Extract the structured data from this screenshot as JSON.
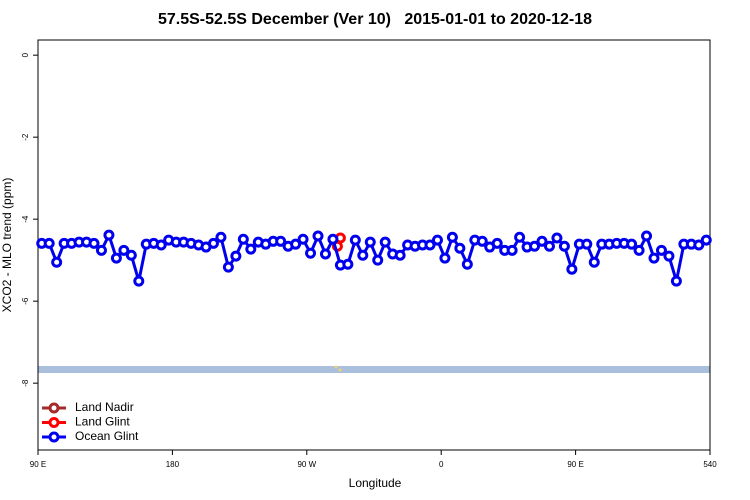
{
  "chart_data": {
    "type": "line",
    "title": "57.5S-52.5S December (Ver 10)   2015-01-01 to 2020-12-18",
    "x_label": "Longitude",
    "y_label": "XCO2 - MLO trend (ppm)",
    "xlim": [
      90,
      540
    ],
    "ylim": [
      -9.63,
      0.37
    ],
    "xticks": [
      {
        "value": 90,
        "label": "90 E"
      },
      180,
      {
        "value": 270,
        "label": "90 W"
      },
      {
        "value": 360,
        "label": "0"
      },
      {
        "value": 450,
        "label": "90 E"
      },
      540
    ],
    "yticks": [
      0,
      -2,
      -4,
      -6,
      -8
    ],
    "legend": "bottom-left",
    "series": [
      {
        "name": "Land Nadir",
        "color": "#a52a2a",
        "x": [],
        "values": []
      },
      {
        "name": "Land Glint",
        "color": "#ff0000",
        "x": [
          290.5,
          292.5
        ],
        "values": [
          -4.66,
          -4.46
        ]
      },
      {
        "name": "Ocean Glint",
        "color": "#0000ee",
        "x": [
          92.5,
          97.5,
          102.5,
          107.5,
          112.5,
          117.5,
          122.5,
          127.5,
          132.5,
          137.5,
          142.5,
          147.5,
          152.5,
          157.5,
          162.5,
          167.5,
          172.5,
          177.5,
          182.5,
          187.5,
          192.5,
          197.5,
          202.5,
          207.5,
          212.5,
          217.5,
          222.5,
          227.5,
          232.5,
          237.5,
          242.5,
          247.5,
          252.5,
          257.5,
          262.5,
          267.5,
          272.5,
          277.5,
          282.5,
          287.5,
          292.5,
          297.5,
          302.5,
          307.5,
          312.5,
          317.5,
          322.5,
          327.5,
          332.5,
          337.5,
          342.5,
          347.5,
          352.5,
          357.5,
          362.5,
          367.5,
          372.5,
          377.5,
          382.5,
          387.5,
          392.5,
          397.5,
          402.5,
          407.5,
          412.5,
          417.5,
          422.5,
          427.5,
          432.5,
          437.5,
          442.5,
          447.5,
          452.5,
          457.5,
          462.5,
          467.5,
          472.5,
          477.5,
          482.5,
          487.5,
          492.5,
          497.5,
          502.5,
          507.5,
          512.5,
          517.5,
          522.5,
          527.5,
          532.5,
          537.5
        ],
        "values": [
          -4.59,
          -4.59,
          -5.05,
          -4.59,
          -4.59,
          -4.56,
          -4.56,
          -4.59,
          -4.76,
          -4.39,
          -4.95,
          -4.76,
          -4.88,
          -5.51,
          -4.61,
          -4.59,
          -4.63,
          -4.51,
          -4.56,
          -4.56,
          -4.59,
          -4.63,
          -4.68,
          -4.59,
          -4.44,
          -5.17,
          -4.9,
          -4.49,
          -4.73,
          -4.56,
          -4.61,
          -4.54,
          -4.54,
          -4.66,
          -4.61,
          -4.49,
          -4.83,
          -4.41,
          -4.85,
          -4.49,
          -5.12,
          -5.1,
          -4.51,
          -4.88,
          -4.56,
          -5.0,
          -4.56,
          -4.85,
          -4.88,
          -4.63,
          -4.66,
          -4.63,
          -4.63,
          -4.51,
          -4.95,
          -4.44,
          -4.71,
          -5.1,
          -4.51,
          -4.54,
          -4.68,
          -4.59,
          -4.76,
          -4.76,
          -4.44,
          -4.68,
          -4.66,
          -4.54,
          -4.66,
          -4.46,
          -4.66,
          -5.22,
          -4.61,
          -4.61,
          -5.05,
          -4.61,
          -4.61,
          -4.59,
          -4.59,
          -4.61,
          -4.76,
          -4.41,
          -4.95,
          -4.76,
          -4.9,
          -5.51,
          -4.61,
          -4.61,
          -4.63,
          -4.51
        ]
      }
    ]
  }
}
